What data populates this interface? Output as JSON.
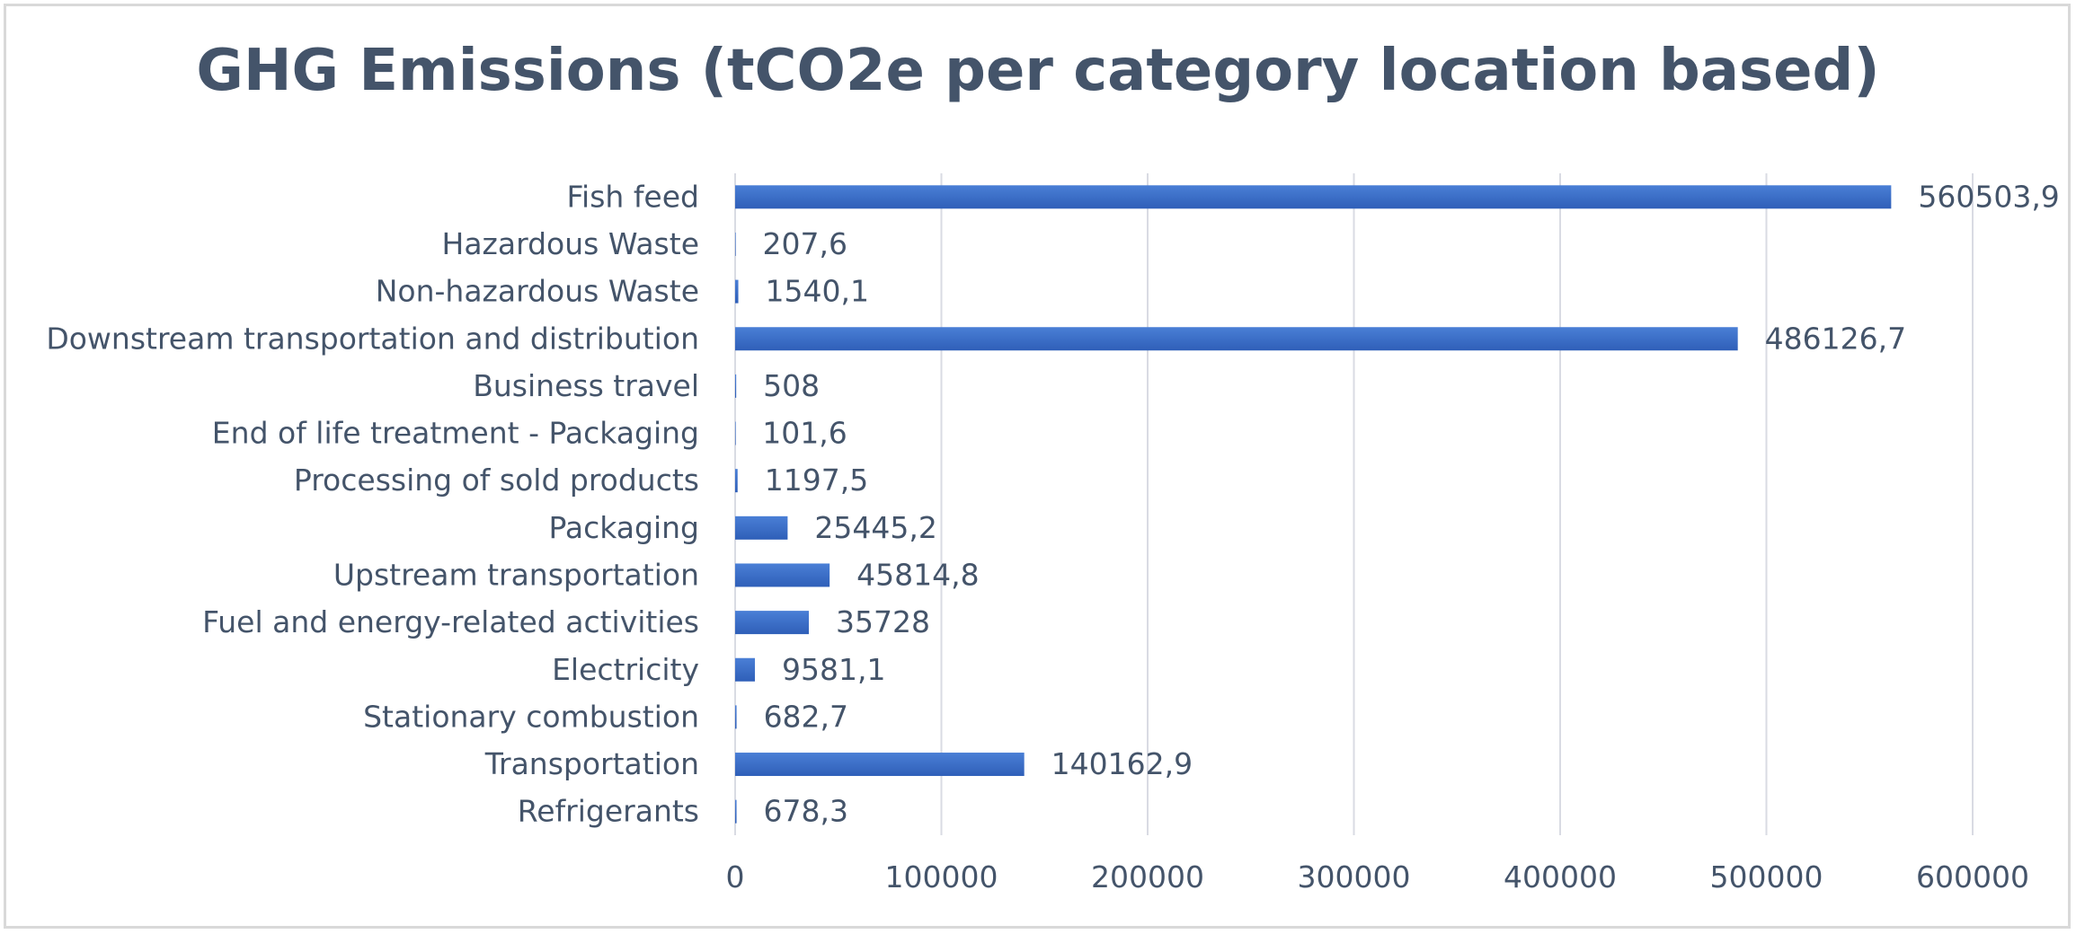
{
  "chart_data": {
    "type": "bar",
    "orientation": "horizontal",
    "title": "GHG Emissions (tCO2e per category location based)",
    "xlabel": "",
    "ylabel": "",
    "categories": [
      "Fish feed",
      "Hazardous Waste",
      "Non-hazardous Waste",
      "Downstream transportation and distribution",
      "Business travel",
      "End of life treatment - Packaging",
      "Processing of sold products",
      "Packaging",
      "Upstream transportation",
      "Fuel and energy-related activities",
      "Electricity",
      "Stationary combustion",
      "Transportation",
      "Refrigerants"
    ],
    "values": [
      560503.9,
      207.6,
      1540.1,
      486126.7,
      508,
      101.6,
      1197.5,
      25445.2,
      45814.8,
      35728,
      9581.1,
      682.7,
      140162.9,
      678.3
    ],
    "value_labels": [
      "560503,9",
      "207,6",
      "1540,1",
      "486126,7",
      "508",
      "101,6",
      "1197,5",
      "25445,2",
      "45814,8",
      "35728",
      "9581,1",
      "682,7",
      "140162,9",
      "678,3"
    ],
    "xlim": [
      0,
      600000
    ],
    "x_ticks": [
      0,
      100000,
      200000,
      300000,
      400000,
      500000,
      600000
    ],
    "x_tick_labels": [
      "0",
      "100000",
      "200000",
      "300000",
      "400000",
      "500000",
      "600000"
    ],
    "grid": true,
    "legend": "none",
    "colors": {
      "bar_top": "#4a7fd6",
      "bar_bottom": "#2f5fb8",
      "text": "#44546a",
      "grid": "#d9dbe3",
      "border": "#d9d9d9"
    }
  }
}
